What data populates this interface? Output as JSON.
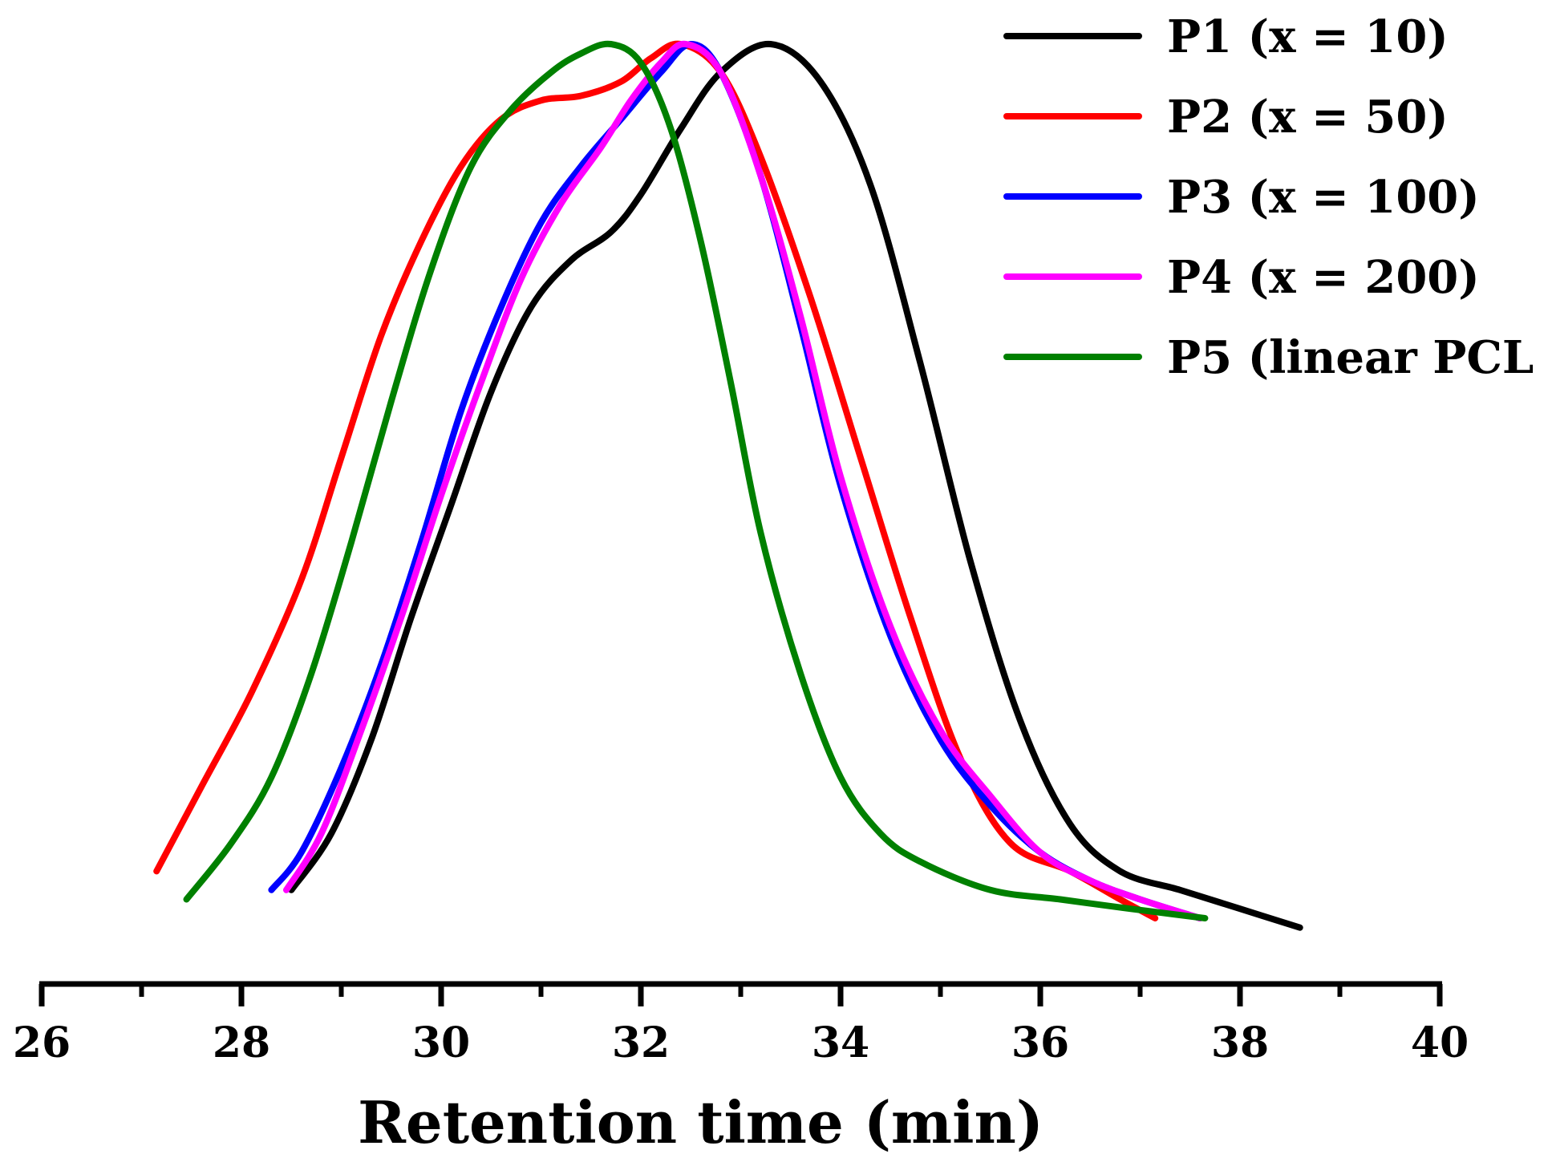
{
  "chart_data": {
    "type": "line",
    "title": "",
    "xlabel": "Retention time (min)",
    "ylabel": "",
    "xlim": [
      26,
      40
    ],
    "ylim": [
      0,
      1
    ],
    "x_major_ticks": [
      26,
      28,
      30,
      32,
      34,
      36,
      38,
      40
    ],
    "x_minor_ticks": [
      27,
      29,
      31,
      33,
      35,
      37,
      39
    ],
    "x_tick_labels": [
      "26",
      "28",
      "30",
      "32",
      "34",
      "36",
      "38",
      "40"
    ],
    "legend_position": "top-right",
    "grid": false,
    "series": [
      {
        "name": "P1 (x = 10)",
        "color": "#000000",
        "points": [
          [
            28.5,
            0.1
          ],
          [
            28.9,
            0.16
          ],
          [
            29.3,
            0.26
          ],
          [
            29.7,
            0.39
          ],
          [
            30.1,
            0.51
          ],
          [
            30.5,
            0.63
          ],
          [
            30.9,
            0.72
          ],
          [
            31.3,
            0.77
          ],
          [
            31.7,
            0.8
          ],
          [
            32.0,
            0.84
          ],
          [
            32.4,
            0.91
          ],
          [
            32.8,
            0.97
          ],
          [
            33.3,
            1.0
          ],
          [
            33.8,
            0.96
          ],
          [
            34.3,
            0.85
          ],
          [
            34.8,
            0.66
          ],
          [
            35.3,
            0.45
          ],
          [
            35.8,
            0.28
          ],
          [
            36.3,
            0.17
          ],
          [
            36.8,
            0.12
          ],
          [
            37.4,
            0.1
          ],
          [
            38.0,
            0.08
          ],
          [
            38.6,
            0.06
          ]
        ]
      },
      {
        "name": "P2 (x = 50)",
        "color": "#ff0000",
        "points": [
          [
            27.15,
            0.12
          ],
          [
            27.6,
            0.21
          ],
          [
            28.1,
            0.31
          ],
          [
            28.6,
            0.43
          ],
          [
            29.0,
            0.56
          ],
          [
            29.4,
            0.69
          ],
          [
            29.8,
            0.79
          ],
          [
            30.2,
            0.87
          ],
          [
            30.6,
            0.92
          ],
          [
            31.0,
            0.94
          ],
          [
            31.4,
            0.945
          ],
          [
            31.8,
            0.96
          ],
          [
            32.1,
            0.985
          ],
          [
            32.4,
            1.0
          ],
          [
            32.8,
            0.97
          ],
          [
            33.2,
            0.88
          ],
          [
            33.7,
            0.73
          ],
          [
            34.2,
            0.56
          ],
          [
            34.7,
            0.39
          ],
          [
            35.2,
            0.24
          ],
          [
            35.7,
            0.15
          ],
          [
            36.3,
            0.12
          ],
          [
            36.8,
            0.09
          ],
          [
            37.15,
            0.07
          ]
        ]
      },
      {
        "name": "P3 (x = 100)",
        "color": "#0000ff",
        "points": [
          [
            28.3,
            0.1
          ],
          [
            28.6,
            0.14
          ],
          [
            29.0,
            0.23
          ],
          [
            29.4,
            0.34
          ],
          [
            29.8,
            0.47
          ],
          [
            30.2,
            0.61
          ],
          [
            30.6,
            0.72
          ],
          [
            31.0,
            0.81
          ],
          [
            31.4,
            0.87
          ],
          [
            31.8,
            0.92
          ],
          [
            32.2,
            0.97
          ],
          [
            32.5,
            1.0
          ],
          [
            32.8,
            0.97
          ],
          [
            33.2,
            0.86
          ],
          [
            33.6,
            0.7
          ],
          [
            34.0,
            0.53
          ],
          [
            34.5,
            0.37
          ],
          [
            35.0,
            0.26
          ],
          [
            35.5,
            0.19
          ],
          [
            36.0,
            0.14
          ],
          [
            36.5,
            0.11
          ],
          [
            37.0,
            0.09
          ],
          [
            37.6,
            0.07
          ]
        ]
      },
      {
        "name": "P4 (x = 200)",
        "color": "#ff00ff",
        "points": [
          [
            28.45,
            0.1
          ],
          [
            28.8,
            0.16
          ],
          [
            29.2,
            0.27
          ],
          [
            29.6,
            0.39
          ],
          [
            30.0,
            0.52
          ],
          [
            30.4,
            0.64
          ],
          [
            30.8,
            0.75
          ],
          [
            31.2,
            0.83
          ],
          [
            31.6,
            0.89
          ],
          [
            31.9,
            0.94
          ],
          [
            32.2,
            0.98
          ],
          [
            32.45,
            1.0
          ],
          [
            32.8,
            0.97
          ],
          [
            33.2,
            0.86
          ],
          [
            33.6,
            0.71
          ],
          [
            34.0,
            0.54
          ],
          [
            34.5,
            0.38
          ],
          [
            35.0,
            0.27
          ],
          [
            35.5,
            0.2
          ],
          [
            36.0,
            0.14
          ],
          [
            36.5,
            0.11
          ],
          [
            37.0,
            0.09
          ],
          [
            37.6,
            0.07
          ]
        ]
      },
      {
        "name": "P5 (linear PCL",
        "color": "#008000",
        "points": [
          [
            27.45,
            0.09
          ],
          [
            27.9,
            0.15
          ],
          [
            28.3,
            0.22
          ],
          [
            28.7,
            0.33
          ],
          [
            29.1,
            0.47
          ],
          [
            29.5,
            0.62
          ],
          [
            29.9,
            0.76
          ],
          [
            30.3,
            0.87
          ],
          [
            30.7,
            0.93
          ],
          [
            31.1,
            0.97
          ],
          [
            31.4,
            0.99
          ],
          [
            31.7,
            1.0
          ],
          [
            32.0,
            0.98
          ],
          [
            32.3,
            0.91
          ],
          [
            32.6,
            0.79
          ],
          [
            32.9,
            0.64
          ],
          [
            33.2,
            0.48
          ],
          [
            33.6,
            0.33
          ],
          [
            34.0,
            0.22
          ],
          [
            34.4,
            0.16
          ],
          [
            34.8,
            0.13
          ],
          [
            35.5,
            0.1
          ],
          [
            36.2,
            0.09
          ],
          [
            36.9,
            0.08
          ],
          [
            37.65,
            0.07
          ]
        ]
      }
    ]
  }
}
